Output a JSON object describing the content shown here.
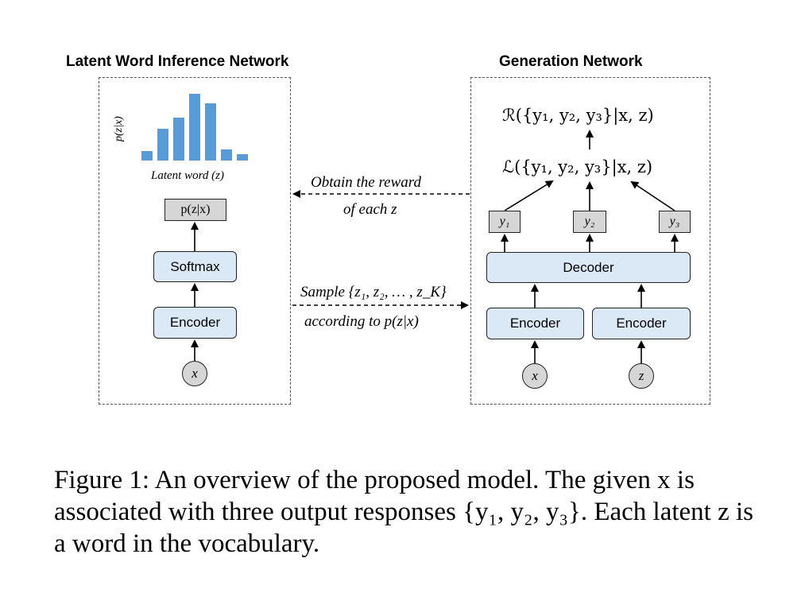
{
  "left_panel": {
    "title": "Latent Word Inference Network",
    "histogram": {
      "ylabel": "p(z|x)",
      "xlabel": "Latent word (z)",
      "values": [
        0.1,
        0.33,
        0.45,
        0.7,
        0.6,
        0.12,
        0.07
      ],
      "color": "#5b9bd5"
    },
    "output_box": "p(z|x)",
    "softmax_label": "Softmax",
    "encoder_label": "Encoder",
    "input_label": "x"
  },
  "right_panel": {
    "title": "Generation Network",
    "reward_formula": "ℛ({y₁, y₂, y₃}|x, z)",
    "loss_formula": "ℒ({y₁, y₂, y₃}|x, z)",
    "outputs": [
      "y₁",
      "y₂",
      "y₃"
    ],
    "decoder_label": "Decoder",
    "encoder_x_label": "Encoder",
    "encoder_z_label": "Encoder",
    "input_x_label": "x",
    "input_z_label": "z"
  },
  "middle": {
    "reward_line1": "Obtain the reward",
    "reward_line2": "of each z",
    "sample_line1": "Sample {z₁, z₂, … , z_K}",
    "sample_line2": "according to p(z|x)"
  },
  "caption": {
    "text": "Figure 1: An overview of the proposed model. The given x is associated with three output responses {y₁, y₂, y₃}. Each latent z is a word in the vocabulary."
  }
}
